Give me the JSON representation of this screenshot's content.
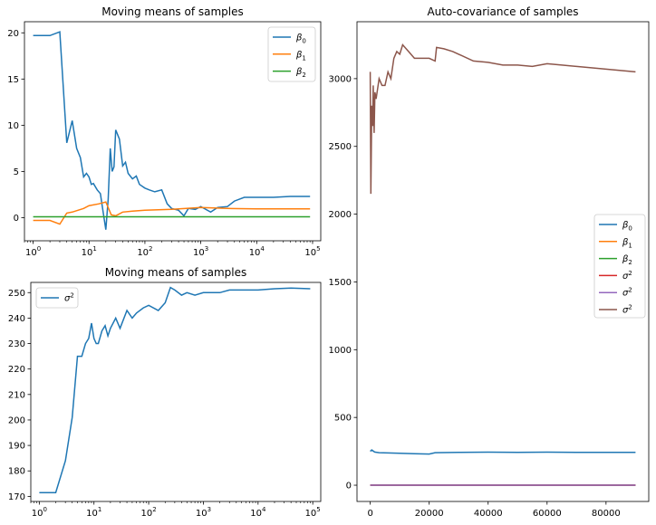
{
  "chart_data": [
    {
      "type": "line",
      "title": "Moving means of samples",
      "xscale": "log",
      "xlim": [
        0.7,
        140000
      ],
      "ylim": [
        -2.5,
        21.2
      ],
      "x_ticks": [
        1,
        10,
        100,
        1000,
        10000,
        100000
      ],
      "x_ticklabels": [
        {
          "base": "10",
          "exp": "0"
        },
        {
          "base": "10",
          "exp": "1"
        },
        {
          "base": "10",
          "exp": "2"
        },
        {
          "base": "10",
          "exp": "3"
        },
        {
          "base": "10",
          "exp": "4"
        },
        {
          "base": "10",
          "exp": "5"
        }
      ],
      "y_ticks": [
        0,
        5,
        10,
        15,
        20
      ],
      "y_ticklabels": [
        "0",
        "5",
        "10",
        "15",
        "20"
      ],
      "legend_position": "upper right",
      "series": [
        {
          "name": "β0",
          "label_main": "β",
          "label_sub": "0",
          "color": "#1f77b4",
          "points": [
            [
              1,
              19.7
            ],
            [
              2,
              19.7
            ],
            [
              3,
              20.1
            ],
            [
              4,
              8.1
            ],
            [
              5,
              10.5
            ],
            [
              6,
              7.5
            ],
            [
              7,
              6.5
            ],
            [
              8,
              4.4
            ],
            [
              9,
              4.8
            ],
            [
              10,
              4.4
            ],
            [
              11,
              3.6
            ],
            [
              12,
              3.7
            ],
            [
              14,
              3.0
            ],
            [
              16,
              2.6
            ],
            [
              18,
              0.5
            ],
            [
              20,
              -1.3
            ],
            [
              22,
              2.0
            ],
            [
              24,
              7.5
            ],
            [
              26,
              5.0
            ],
            [
              28,
              5.5
            ],
            [
              30,
              9.5
            ],
            [
              35,
              8.5
            ],
            [
              40,
              5.6
            ],
            [
              45,
              6.0
            ],
            [
              50,
              4.8
            ],
            [
              60,
              4.2
            ],
            [
              70,
              4.5
            ],
            [
              80,
              3.6
            ],
            [
              100,
              3.2
            ],
            [
              120,
              3.0
            ],
            [
              150,
              2.8
            ],
            [
              200,
              3.0
            ],
            [
              250,
              1.5
            ],
            [
              300,
              1.0
            ],
            [
              400,
              0.8
            ],
            [
              500,
              0.2
            ],
            [
              600,
              1.0
            ],
            [
              800,
              0.9
            ],
            [
              1000,
              1.2
            ],
            [
              1500,
              0.6
            ],
            [
              2000,
              1.1
            ],
            [
              3000,
              1.2
            ],
            [
              4000,
              1.8
            ],
            [
              6000,
              2.2
            ],
            [
              10000,
              2.2
            ],
            [
              20000,
              2.2
            ],
            [
              40000,
              2.3
            ],
            [
              90000,
              2.3
            ]
          ]
        },
        {
          "name": "β1",
          "label_main": "β",
          "label_sub": "1",
          "color": "#ff7f0e",
          "points": [
            [
              1,
              -0.3
            ],
            [
              2,
              -0.3
            ],
            [
              3,
              -0.7
            ],
            [
              4,
              0.5
            ],
            [
              5,
              0.6
            ],
            [
              8,
              1.0
            ],
            [
              10,
              1.3
            ],
            [
              15,
              1.5
            ],
            [
              20,
              1.7
            ],
            [
              25,
              0.3
            ],
            [
              30,
              0.2
            ],
            [
              40,
              0.6
            ],
            [
              60,
              0.7
            ],
            [
              100,
              0.8
            ],
            [
              300,
              0.9
            ],
            [
              1000,
              1.1
            ],
            [
              3000,
              1.0
            ],
            [
              10000,
              0.95
            ],
            [
              90000,
              0.95
            ]
          ]
        },
        {
          "name": "β2",
          "label_main": "β",
          "label_sub": "2",
          "color": "#2ca02c",
          "points": [
            [
              1,
              0.1
            ],
            [
              90000,
              0.1
            ]
          ]
        }
      ]
    },
    {
      "type": "line",
      "title": "Moving means of samples",
      "xscale": "log",
      "xlim": [
        0.7,
        140000
      ],
      "ylim": [
        168,
        254
      ],
      "x_ticks": [
        1,
        10,
        100,
        1000,
        10000,
        100000
      ],
      "x_ticklabels": [
        {
          "base": "10",
          "exp": "0"
        },
        {
          "base": "10",
          "exp": "1"
        },
        {
          "base": "10",
          "exp": "2"
        },
        {
          "base": "10",
          "exp": "3"
        },
        {
          "base": "10",
          "exp": "4"
        },
        {
          "base": "10",
          "exp": "5"
        }
      ],
      "y_ticks": [
        170,
        180,
        190,
        200,
        210,
        220,
        230,
        240,
        250
      ],
      "y_ticklabels": [
        "170",
        "180",
        "190",
        "200",
        "210",
        "220",
        "230",
        "240",
        "250"
      ],
      "legend_position": "upper left",
      "series": [
        {
          "name": "σ2",
          "label_main": "σ",
          "label_sup": "2",
          "color": "#1f77b4",
          "points": [
            [
              1,
              171.5
            ],
            [
              2,
              171.5
            ],
            [
              3,
              184
            ],
            [
              4,
              201
            ],
            [
              5,
              225
            ],
            [
              6,
              225
            ],
            [
              7,
              230
            ],
            [
              8,
              232
            ],
            [
              9,
              238
            ],
            [
              10,
              232
            ],
            [
              11,
              230
            ],
            [
              12,
              230
            ],
            [
              14,
              235
            ],
            [
              16,
              237
            ],
            [
              18,
              233
            ],
            [
              20,
              236
            ],
            [
              25,
              240
            ],
            [
              30,
              236
            ],
            [
              40,
              243
            ],
            [
              50,
              240
            ],
            [
              60,
              242
            ],
            [
              80,
              244
            ],
            [
              100,
              245
            ],
            [
              150,
              243
            ],
            [
              200,
              246
            ],
            [
              250,
              252
            ],
            [
              300,
              251
            ],
            [
              400,
              249
            ],
            [
              500,
              250
            ],
            [
              700,
              249
            ],
            [
              1000,
              250
            ],
            [
              2000,
              250
            ],
            [
              3000,
              251
            ],
            [
              6000,
              251
            ],
            [
              10000,
              251
            ],
            [
              20000,
              251.5
            ],
            [
              40000,
              251.8
            ],
            [
              90000,
              251.5
            ]
          ]
        }
      ]
    },
    {
      "type": "line",
      "title": "Auto-covariance of samples",
      "xscale": "linear",
      "xlim": [
        -4500,
        94500
      ],
      "ylim": [
        -120,
        3420
      ],
      "x_ticks": [
        0,
        20000,
        40000,
        60000,
        80000
      ],
      "x_ticklabels": [
        "0",
        "20000",
        "40000",
        "60000",
        "80000"
      ],
      "y_ticks": [
        0,
        500,
        1000,
        1500,
        2000,
        2500,
        3000
      ],
      "y_ticklabels": [
        "0",
        "500",
        "1000",
        "1500",
        "2000",
        "2500",
        "3000"
      ],
      "legend_position": "center right",
      "series": [
        {
          "name": "β0",
          "label_main": "β",
          "label_sub": "0",
          "color": "#1f77b4",
          "points": [
            [
              0,
              250
            ],
            [
              500,
              260
            ],
            [
              1500,
              245
            ],
            [
              3000,
              240
            ],
            [
              6000,
              238
            ],
            [
              10000,
              236
            ],
            [
              15000,
              232
            ],
            [
              20000,
              230
            ],
            [
              22000,
              240
            ],
            [
              30000,
              242
            ],
            [
              40000,
              244
            ],
            [
              50000,
              242
            ],
            [
              60000,
              244
            ],
            [
              70000,
              243
            ],
            [
              80000,
              242
            ],
            [
              90000,
              242
            ]
          ]
        },
        {
          "name": "β1",
          "label_main": "β",
          "label_sub": "1",
          "color": "#ff7f0e",
          "points": [
            [
              0,
              0
            ],
            [
              90000,
              0
            ]
          ]
        },
        {
          "name": "β2",
          "label_main": "β",
          "label_sub": "2",
          "color": "#2ca02c",
          "points": [
            [
              0,
              0
            ],
            [
              90000,
              0
            ]
          ]
        },
        {
          "name": "σ2",
          "label_main": "σ",
          "label_sup": "2",
          "color": "#d62728",
          "points": [
            [
              0,
              0
            ],
            [
              90000,
              0
            ]
          ]
        },
        {
          "name": "σ2",
          "label_main": "σ",
          "label_sup": "2",
          "color": "#9467bd",
          "points": [
            [
              0,
              0
            ],
            [
              90000,
              0
            ]
          ]
        },
        {
          "name": "σ2",
          "label_main": "σ",
          "label_sup": "2",
          "color": "#8c564b",
          "points": [
            [
              0,
              3050
            ],
            [
              200,
              2150
            ],
            [
              500,
              2800
            ],
            [
              800,
              2650
            ],
            [
              1000,
              2950
            ],
            [
              1300,
              2600
            ],
            [
              1600,
              2900
            ],
            [
              2000,
              2850
            ],
            [
              3000,
              3000
            ],
            [
              4000,
              2950
            ],
            [
              5000,
              2950
            ],
            [
              6000,
              3050
            ],
            [
              7000,
              3000
            ],
            [
              8000,
              3150
            ],
            [
              9000,
              3200
            ],
            [
              10000,
              3180
            ],
            [
              11000,
              3250
            ],
            [
              13000,
              3200
            ],
            [
              15000,
              3150
            ],
            [
              17000,
              3150
            ],
            [
              20000,
              3150
            ],
            [
              22000,
              3130
            ],
            [
              22500,
              3230
            ],
            [
              25000,
              3220
            ],
            [
              28000,
              3200
            ],
            [
              30000,
              3180
            ],
            [
              35000,
              3130
            ],
            [
              40000,
              3120
            ],
            [
              45000,
              3100
            ],
            [
              50000,
              3100
            ],
            [
              55000,
              3090
            ],
            [
              60000,
              3110
            ],
            [
              65000,
              3100
            ],
            [
              70000,
              3090
            ],
            [
              75000,
              3080
            ],
            [
              80000,
              3070
            ],
            [
              85000,
              3060
            ],
            [
              90000,
              3050
            ]
          ]
        }
      ]
    }
  ]
}
